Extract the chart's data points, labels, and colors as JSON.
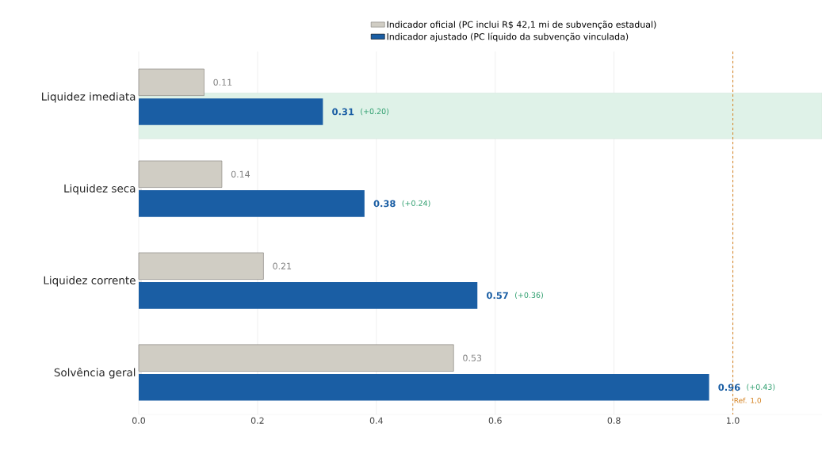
{
  "chart_data": {
    "type": "bar",
    "orientation": "horizontal",
    "categories": [
      "Liquidez imediata",
      "Liquidez seca",
      "Liquidez corrente",
      "Solvência geral"
    ],
    "series": [
      {
        "name": "Indicador oficial  (PC inclui R$ 42,1 mi de subvenção estadual)",
        "color": "#d0cdc4",
        "values": [
          0.11,
          0.14,
          0.21,
          0.53
        ]
      },
      {
        "name": "Indicador ajustado  (PC líquido da subvenção vinculada)",
        "color": "#1a5ea4",
        "values": [
          0.31,
          0.38,
          0.57,
          0.96
        ]
      }
    ],
    "data_labels": true,
    "annotations": [
      "(+0.20)",
      "(+0.24)",
      "(+0.36)",
      "(+0.43)"
    ],
    "ref_lines": [
      {
        "axis": "x",
        "value": 1.0,
        "label": "Ref. 1,0",
        "color": "#d4801e",
        "line_style": "dashed"
      }
    ],
    "bands": [
      {
        "axis": "y",
        "from": "Liquidez imediata",
        "to": "Liquidez imediata",
        "color": "#dff2e8"
      }
    ],
    "xlim": [
      0,
      1.15
    ],
    "xticks": [
      {
        "value": 0,
        "label": "0.0"
      },
      {
        "value": 0.2,
        "label": "0.2"
      },
      {
        "value": 0.4,
        "label": "0.4"
      },
      {
        "value": 0.6,
        "label": "0.6"
      },
      {
        "value": 0.8,
        "label": "0.8"
      },
      {
        "value": 1.0,
        "label": "1.0"
      }
    ],
    "grid": "x",
    "legend": "top"
  }
}
